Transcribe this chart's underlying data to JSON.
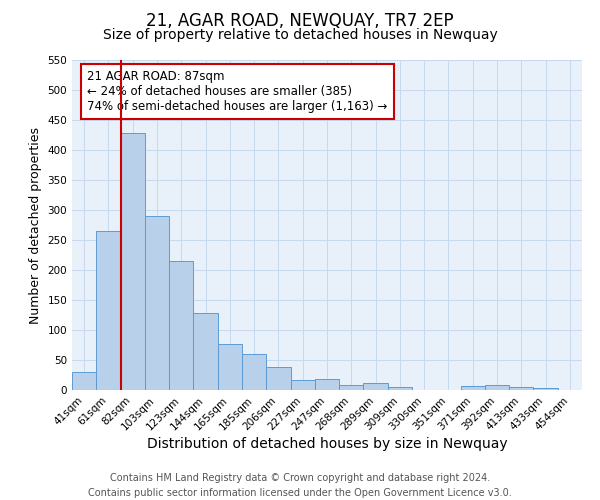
{
  "title": "21, AGAR ROAD, NEWQUAY, TR7 2EP",
  "subtitle": "Size of property relative to detached houses in Newquay",
  "xlabel": "Distribution of detached houses by size in Newquay",
  "ylabel": "Number of detached properties",
  "categories": [
    "41sqm",
    "61sqm",
    "82sqm",
    "103sqm",
    "123sqm",
    "144sqm",
    "165sqm",
    "185sqm",
    "206sqm",
    "227sqm",
    "247sqm",
    "268sqm",
    "289sqm",
    "309sqm",
    "330sqm",
    "351sqm",
    "371sqm",
    "392sqm",
    "413sqm",
    "433sqm",
    "454sqm"
  ],
  "values": [
    30,
    265,
    428,
    290,
    215,
    128,
    77,
    60,
    39,
    16,
    19,
    9,
    12,
    5,
    0,
    0,
    6,
    8,
    5,
    4,
    0
  ],
  "bar_color": "#b8d0ea",
  "bar_edge_color": "#5b9bd5",
  "red_line_index": 2,
  "red_line_color": "#cc0000",
  "annotation_text": "21 AGAR ROAD: 87sqm\n← 24% of detached houses are smaller (385)\n74% of semi-detached houses are larger (1,163) →",
  "annotation_box_facecolor": "#ffffff",
  "annotation_box_edgecolor": "#cc0000",
  "ylim_max": 550,
  "yticks": [
    0,
    50,
    100,
    150,
    200,
    250,
    300,
    350,
    400,
    450,
    500,
    550
  ],
  "grid_color": "#c5d9ee",
  "ax_facecolor": "#e8f1f9",
  "fig_facecolor": "#ffffff",
  "title_fontsize": 12,
  "subtitle_fontsize": 10,
  "xlabel_fontsize": 10,
  "ylabel_fontsize": 9,
  "tick_fontsize": 7.5,
  "annotation_fontsize": 8.5,
  "footnote_fontsize": 7,
  "footnote": "Contains HM Land Registry data © Crown copyright and database right 2024.\nContains public sector information licensed under the Open Government Licence v3.0."
}
